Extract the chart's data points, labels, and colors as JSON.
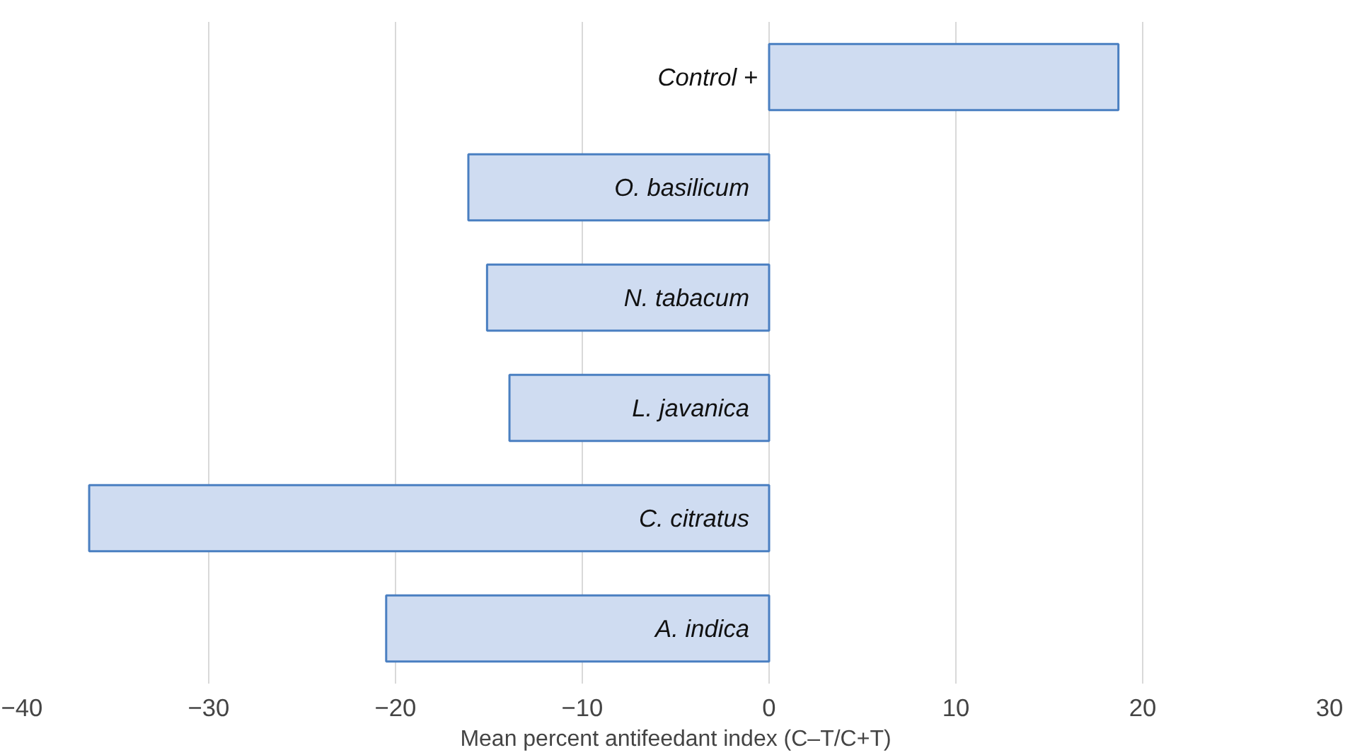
{
  "chart_data": {
    "type": "bar",
    "orientation": "horizontal",
    "xlabel": "Mean percent antifeedant index (C–T/C+T)",
    "categories": [
      "Control +",
      "O. basilicum",
      "N. tabacum",
      "L. javanica",
      "C. citratus",
      "A. indica"
    ],
    "values": [
      18.7,
      -16.1,
      -15.1,
      -13.9,
      -36.4,
      -20.5
    ],
    "color": "#cfdcf1",
    "xlim": [
      -40,
      30
    ],
    "xticks": [
      -40,
      -30,
      -20,
      -10,
      0,
      10,
      20,
      30
    ],
    "grid": "x"
  }
}
